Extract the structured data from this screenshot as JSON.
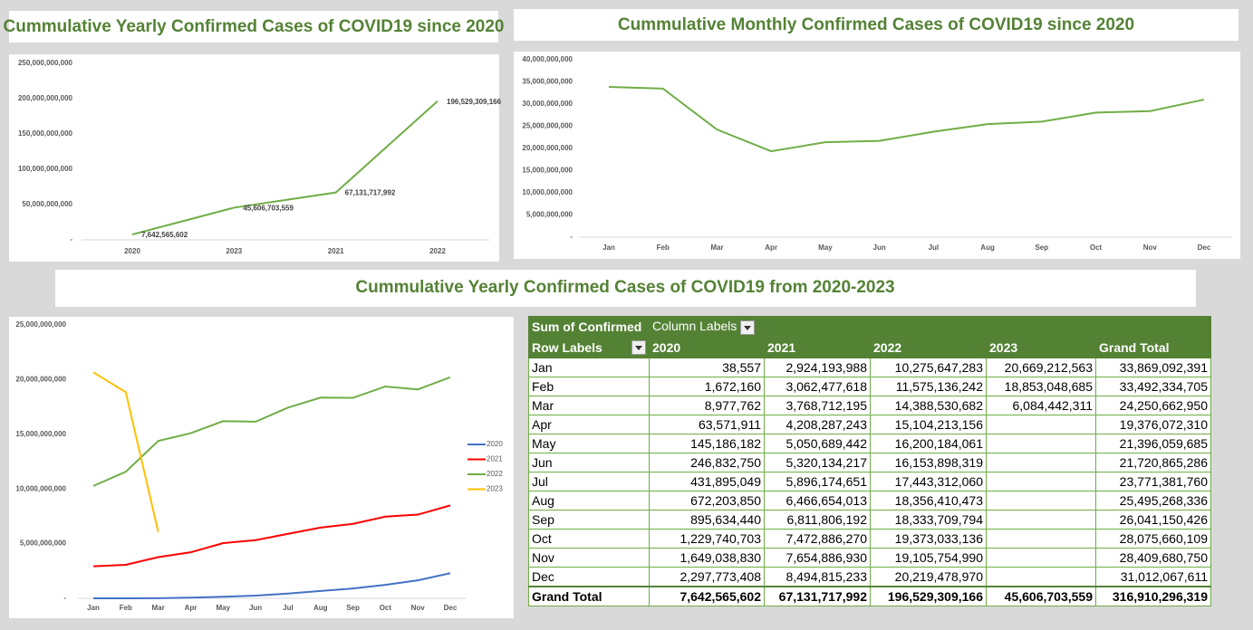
{
  "chart_data": [
    {
      "type": "line",
      "title": "Cummulative Yearly Confirmed Cases of COVID19 since 2020",
      "categories": [
        "2020",
        "2023",
        "2021",
        "2022"
      ],
      "values": [
        7642565602,
        45606703559,
        67131717992,
        196529309166
      ],
      "value_labels": [
        "7,642,565,602",
        "45,606,703,559",
        "67,131,717,992",
        "196,529,309,166"
      ],
      "color": "#70ad47",
      "grid": false,
      "ylim": [
        0,
        250000000000
      ],
      "yticks": [
        {
          "value": 0,
          "label": "-"
        },
        {
          "value": 50000000000,
          "label": "50,000,000,000"
        },
        {
          "value": 100000000000,
          "label": "100,000,000,000"
        },
        {
          "value": 150000000000,
          "label": "150,000,000,000"
        },
        {
          "value": 200000000000,
          "label": "200,000,000,000"
        },
        {
          "value": 250000000000,
          "label": "250,000,000,000"
        }
      ]
    },
    {
      "type": "line",
      "title": "Cummulative Monthly Confirmed Cases of COVID19 since 2020",
      "categories": [
        "Jan",
        "Feb",
        "Mar",
        "Apr",
        "May",
        "Jun",
        "Jul",
        "Aug",
        "Sep",
        "Oct",
        "Nov",
        "Dec"
      ],
      "values": [
        33869092391,
        33492334705,
        24250662950,
        19376072310,
        21396059685,
        21720865286,
        23771381760,
        25495268336,
        26041150426,
        28075660109,
        28409680750,
        31012067611
      ],
      "color": "#70ad47",
      "grid": false,
      "ylim": [
        0,
        40000000000
      ],
      "yticks": [
        {
          "value": 0,
          "label": "-"
        },
        {
          "value": 5000000000,
          "label": "5,000,000,000"
        },
        {
          "value": 10000000000,
          "label": "10,000,000,000"
        },
        {
          "value": 15000000000,
          "label": "15,000,000,000"
        },
        {
          "value": 20000000000,
          "label": "20,000,000,000"
        },
        {
          "value": 25000000000,
          "label": "25,000,000,000"
        },
        {
          "value": 30000000000,
          "label": "30,000,000,000"
        },
        {
          "value": 35000000000,
          "label": "35,000,000,000"
        },
        {
          "value": 40000000000,
          "label": "40,000,000,000"
        }
      ]
    },
    {
      "type": "line",
      "title": "Cummulative Yearly Confirmed Cases of COVID19 from 2020-2023",
      "categories": [
        "Jan",
        "Feb",
        "Mar",
        "Apr",
        "May",
        "Jun",
        "Jul",
        "Aug",
        "Sep",
        "Oct",
        "Nov",
        "Dec"
      ],
      "series": [
        {
          "name": "2020",
          "color": "#4472c4",
          "values": [
            38557,
            1672160,
            8977762,
            63571911,
            145186182,
            246832750,
            431895049,
            672203850,
            895634440,
            1229740703,
            1649038830,
            2297773408
          ]
        },
        {
          "name": "2021",
          "color": "#ff0000",
          "values": [
            2924193988,
            3062477618,
            3768712195,
            4208287243,
            5050689442,
            5320134217,
            5896174651,
            6466654013,
            6811806192,
            7472886270,
            7654886930,
            8494815233
          ]
        },
        {
          "name": "2022",
          "color": "#70ad47",
          "values": [
            10275647283,
            11575136242,
            14388530682,
            15104213156,
            16200184061,
            16153898319,
            17443312060,
            18356410473,
            18333709794,
            19373033136,
            19105754990,
            20219478970
          ]
        },
        {
          "name": "2023",
          "color": "#ffc000",
          "values": [
            20669212563,
            18853048685,
            6084442311,
            null,
            null,
            null,
            null,
            null,
            null,
            null,
            null,
            null
          ]
        }
      ],
      "legend": "right",
      "grid": false,
      "ylim": [
        0,
        25000000000
      ],
      "yticks": [
        {
          "value": 0,
          "label": "-"
        },
        {
          "value": 5000000000,
          "label": "5,000,000,000"
        },
        {
          "value": 10000000000,
          "label": "10,000,000,000"
        },
        {
          "value": 15000000000,
          "label": "15,000,000,000"
        },
        {
          "value": 20000000000,
          "label": "20,000,000,000"
        },
        {
          "value": 25000000000,
          "label": "25,000,000,000"
        }
      ]
    }
  ],
  "table": {
    "header": [
      "Sum of Confirmed",
      "Column Labels"
    ],
    "columns": [
      "Row Labels",
      "2020",
      "2021",
      "2022",
      "2023",
      "Grand Total"
    ],
    "rows": [
      [
        "Jan",
        "38,557",
        "2,924,193,988",
        "10,275,647,283",
        "20,669,212,563",
        "33,869,092,391"
      ],
      [
        "Feb",
        "1,672,160",
        "3,062,477,618",
        "11,575,136,242",
        "18,853,048,685",
        "33,492,334,705"
      ],
      [
        "Mar",
        "8,977,762",
        "3,768,712,195",
        "14,388,530,682",
        "6,084,442,311",
        "24,250,662,950"
      ],
      [
        "Apr",
        "63,571,911",
        "4,208,287,243",
        "15,104,213,156",
        null,
        "19,376,072,310"
      ],
      [
        "May",
        "145,186,182",
        "5,050,689,442",
        "16,200,184,061",
        null,
        "21,396,059,685"
      ],
      [
        "Jun",
        "246,832,750",
        "5,320,134,217",
        "16,153,898,319",
        null,
        "21,720,865,286"
      ],
      [
        "Jul",
        "431,895,049",
        "5,896,174,651",
        "17,443,312,060",
        null,
        "23,771,381,760"
      ],
      [
        "Aug",
        "672,203,850",
        "6,466,654,013",
        "18,356,410,473",
        null,
        "25,495,268,336"
      ],
      [
        "Sep",
        "895,634,440",
        "6,811,806,192",
        "18,333,709,794",
        null,
        "26,041,150,426"
      ],
      [
        "Oct",
        "1,229,740,703",
        "7,472,886,270",
        "19,373,033,136",
        null,
        "28,075,660,109"
      ],
      [
        "Nov",
        "1,649,038,830",
        "7,654,886,930",
        "19,105,754,990",
        null,
        "28,409,680,750"
      ],
      [
        "Dec",
        "2,297,773,408",
        "8,494,815,233",
        "20,219,478,970",
        null,
        "31,012,067,611"
      ]
    ],
    "total": [
      "Grand Total",
      "7,642,565,602",
      "67,131,717,992",
      "196,529,309,166",
      "45,606,703,559",
      "316,910,296,319"
    ]
  }
}
